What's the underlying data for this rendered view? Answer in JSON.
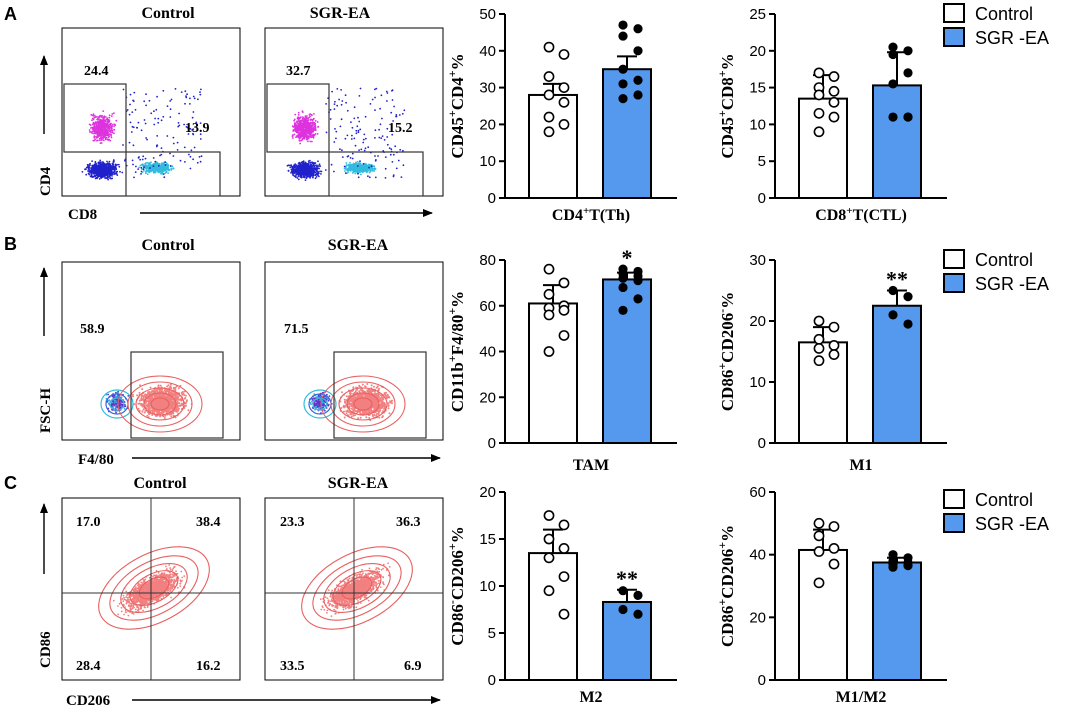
{
  "colors": {
    "control_fill": "#ffffff",
    "treatment_fill": "#5599ee",
    "axis": "#000000",
    "cd4_cluster": "#dd33dd",
    "dn_cluster": "#2222cc",
    "cd8_cluster": "#33bbdd",
    "contour": "#f28080"
  },
  "panels": {
    "A": {
      "letter": "A",
      "control_title": "Control",
      "treat_title": "SGR-EA",
      "y_axis": "CD4",
      "x_axis": "CD8",
      "control_gates": [
        "24.4",
        "13.9"
      ],
      "treat_gates": [
        "32.7",
        "15.2"
      ]
    },
    "B": {
      "letter": "B",
      "control_title": "Control",
      "treat_title": "SGR-EA",
      "y_axis": "FSC-H",
      "x_axis": "F4/80",
      "control_gates": [
        "58.9"
      ],
      "treat_gates": [
        "71.5"
      ]
    },
    "C": {
      "letter": "C",
      "control_title": "Control",
      "treat_title": "SGR-EA",
      "y_axis": "CD86",
      "x_axis": "CD206",
      "control_gates": [
        "17.0",
        "38.4",
        "28.4",
        "16.2"
      ],
      "treat_gates": [
        "23.3",
        "36.3",
        "33.5",
        "6.9"
      ]
    }
  },
  "legend": {
    "control": "Control",
    "treatment": "SGR -EA"
  },
  "chart_data": [
    {
      "id": "th",
      "type": "bar",
      "title": "",
      "xlabel": "CD4+T(Th)",
      "ylabel": "CD45+CD4+%",
      "ylim": [
        0,
        50
      ],
      "yticks": [
        0,
        10,
        20,
        30,
        40,
        50
      ],
      "categories": [
        "Control",
        "SGR -EA"
      ],
      "series": [
        {
          "name": "Control",
          "mean": 28,
          "error": 3,
          "points": [
            41,
            39,
            33,
            30,
            28,
            26,
            22,
            20,
            18
          ]
        },
        {
          "name": "SGR -EA",
          "mean": 35,
          "error": 3.5,
          "points": [
            47,
            46,
            44,
            40,
            35,
            32,
            31,
            28,
            27
          ]
        }
      ],
      "significance": ""
    },
    {
      "id": "ctl",
      "type": "bar",
      "title": "",
      "xlabel": "CD8+T(CTL)",
      "ylabel": "CD45+CD8+%",
      "ylim": [
        0,
        25
      ],
      "yticks": [
        0,
        5,
        10,
        15,
        20,
        25
      ],
      "categories": [
        "Control",
        "SGR -EA"
      ],
      "series": [
        {
          "name": "Control",
          "mean": 13.5,
          "error": 3.2,
          "points": [
            17,
            16.5,
            15,
            14.5,
            14,
            13,
            11.5,
            11,
            9
          ]
        },
        {
          "name": "SGR -EA",
          "mean": 15.3,
          "error": 4.5,
          "points": [
            20.5,
            20,
            19.5,
            17,
            15.5,
            11,
            11,
            11
          ]
        }
      ],
      "significance": ""
    },
    {
      "id": "tam",
      "type": "bar",
      "title": "",
      "xlabel": "TAM",
      "ylabel": "CD11b+F4/80+%",
      "ylim": [
        0,
        80
      ],
      "yticks": [
        0,
        20,
        40,
        60,
        80
      ],
      "categories": [
        "Control",
        "SGR -EA"
      ],
      "series": [
        {
          "name": "Control",
          "mean": 61,
          "error": 8,
          "points": [
            76,
            70,
            65,
            60,
            59,
            58,
            56,
            47,
            40
          ]
        },
        {
          "name": "SGR -EA",
          "mean": 71.5,
          "error": 3,
          "points": [
            76,
            75,
            74,
            73,
            72,
            71,
            68,
            63,
            58
          ]
        }
      ],
      "significance": "*"
    },
    {
      "id": "m1",
      "type": "bar",
      "title": "",
      "xlabel": "M1",
      "ylabel": "CD86+CD206-%",
      "ylim": [
        0,
        30
      ],
      "yticks": [
        0,
        10,
        20,
        30
      ],
      "categories": [
        "Control",
        "SGR -EA"
      ],
      "series": [
        {
          "name": "Control",
          "mean": 16.5,
          "error": 2.5,
          "points": [
            20,
            19,
            17,
            16,
            15.5,
            14.5,
            13.5
          ]
        },
        {
          "name": "SGR -EA",
          "mean": 22.5,
          "error": 2.5,
          "points": [
            25,
            24,
            21,
            19.5
          ]
        }
      ],
      "significance": "**"
    },
    {
      "id": "m2",
      "type": "bar",
      "title": "",
      "xlabel": "M2",
      "ylabel": "CD86-CD206+%",
      "ylim": [
        0,
        20
      ],
      "yticks": [
        0,
        5,
        10,
        15,
        20
      ],
      "categories": [
        "Control",
        "SGR -EA"
      ],
      "series": [
        {
          "name": "Control",
          "mean": 13.5,
          "error": 2.5,
          "points": [
            17.5,
            16.5,
            15,
            14,
            13,
            11,
            9.5,
            7
          ]
        },
        {
          "name": "SGR -EA",
          "mean": 8.3,
          "error": 1.3,
          "points": [
            9.5,
            9,
            7.5,
            7
          ]
        }
      ],
      "significance": "**"
    },
    {
      "id": "m1m2",
      "type": "bar",
      "title": "",
      "xlabel": "M1/M2",
      "ylabel": "CD86+CD206+%",
      "ylim": [
        0,
        60
      ],
      "yticks": [
        0,
        20,
        40,
        60
      ],
      "categories": [
        "Control",
        "SGR -EA"
      ],
      "series": [
        {
          "name": "Control",
          "mean": 41.5,
          "error": 6.5,
          "points": [
            50,
            49,
            46,
            42,
            41,
            37,
            31
          ]
        },
        {
          "name": "SGR -EA",
          "mean": 37.5,
          "error": 1.5,
          "points": [
            40,
            39,
            38,
            37.5,
            37,
            36.5,
            36
          ]
        }
      ],
      "significance": ""
    }
  ]
}
